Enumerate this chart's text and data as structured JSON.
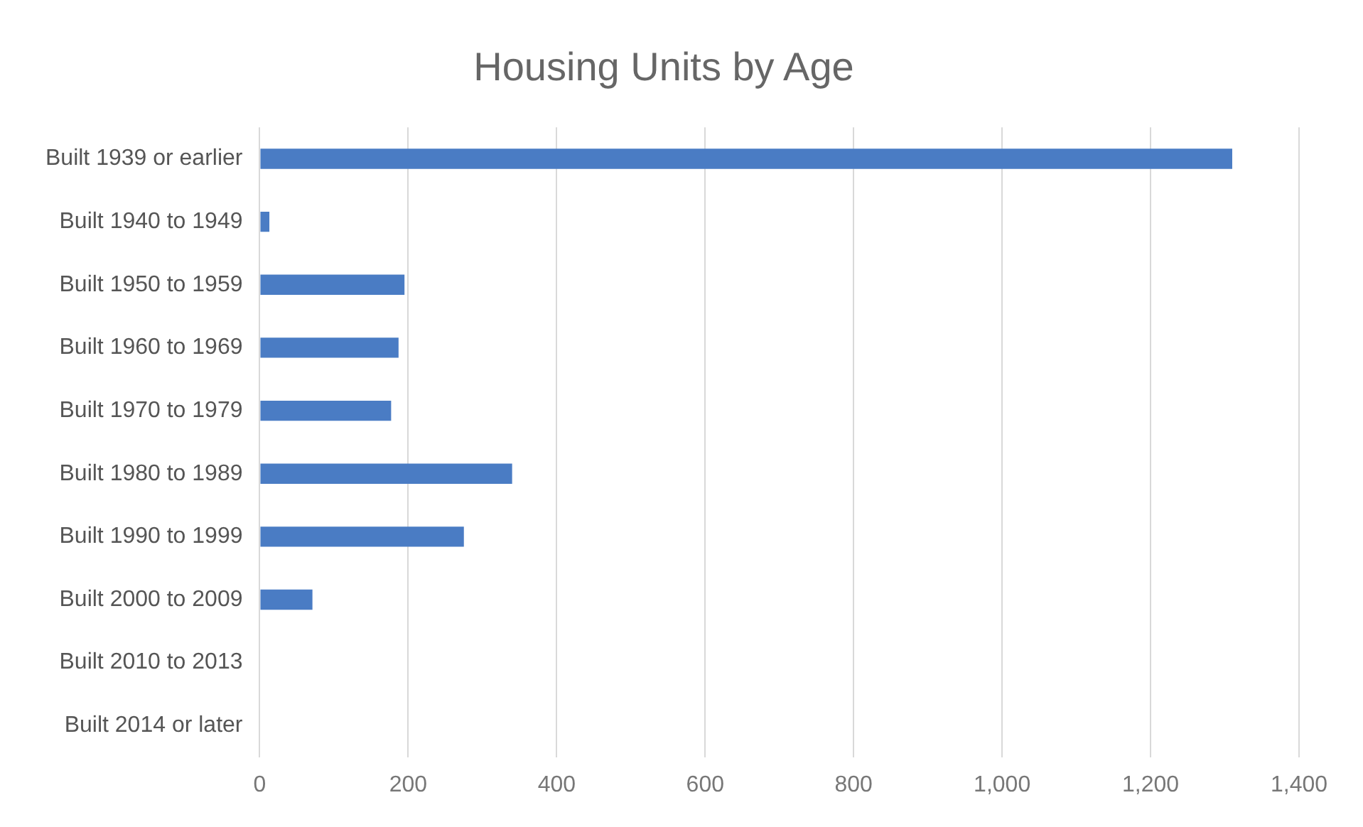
{
  "chart_data": {
    "type": "bar",
    "orientation": "horizontal",
    "title": "Housing Units by Age",
    "categories": [
      "Built 1939 or earlier",
      "Built 1940 to 1949",
      "Built 1950 to 1959",
      "Built 1960 to 1969",
      "Built 1970 to 1979",
      "Built 1980 to 1989",
      "Built 1990 to 1999",
      "Built 2000 to 2009",
      "Built 2010 to 2013",
      "Built 2014 or later"
    ],
    "values": [
      1310,
      13,
      195,
      187,
      177,
      340,
      275,
      71,
      0,
      0
    ],
    "color": "#4a7cc4",
    "xlim": [
      0,
      1400
    ],
    "xticks": [
      {
        "value": 0,
        "label": "0"
      },
      {
        "value": 200,
        "label": "200"
      },
      {
        "value": 400,
        "label": "400"
      },
      {
        "value": 600,
        "label": "600"
      },
      {
        "value": 800,
        "label": "800"
      },
      {
        "value": 1000,
        "label": "1,000"
      },
      {
        "value": 1200,
        "label": "1,200"
      },
      {
        "value": 1400,
        "label": "1,400"
      }
    ],
    "grid": "x",
    "legend": false
  }
}
